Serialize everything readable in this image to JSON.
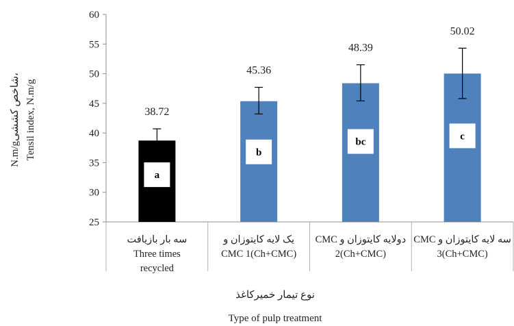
{
  "chart_data": {
    "type": "bar",
    "title": "",
    "categories": [
      {
        "line1": "سه بار بازیافت",
        "line2": "Three times",
        "line3": "recycled"
      },
      {
        "line1": "یک لایه کایتوزان و",
        "line2": "CMC 1(Ch+CMC)",
        "line3": ""
      },
      {
        "line1": "دولایه کایتوزان و CMC",
        "line2": "2(Ch+CMC)",
        "line3": ""
      },
      {
        "line1": "سه لایه کایتوزان و CMC",
        "line2": "3(Ch+CMC)",
        "line3": ""
      }
    ],
    "values": [
      38.72,
      45.36,
      48.39,
      50.02
    ],
    "value_labels": [
      "38.72",
      "45.36",
      "48.39",
      "50.02"
    ],
    "error_bars": [
      [
        36.9,
        40.7
      ],
      [
        43.2,
        47.7
      ],
      [
        45.4,
        51.5
      ],
      [
        45.8,
        54.3
      ]
    ],
    "significance_letters": [
      "a",
      "b",
      "bc",
      "c"
    ],
    "bar_colors": [
      "#000000",
      "#4F81BD",
      "#4F81BD",
      "#4F81BD"
    ],
    "ylim": [
      25,
      60
    ],
    "yticks": [
      "25",
      "30",
      "35",
      "40",
      "45",
      "50",
      "55",
      "60"
    ],
    "ylabel_fa": "N.m/gشاخص کششی،",
    "ylabel_en": "Tensil index, N.m/g",
    "xlabel_fa": "نوع تیمار خمیرکاغذ",
    "xlabel_en": "Type of pulp treatment",
    "grid": false
  }
}
